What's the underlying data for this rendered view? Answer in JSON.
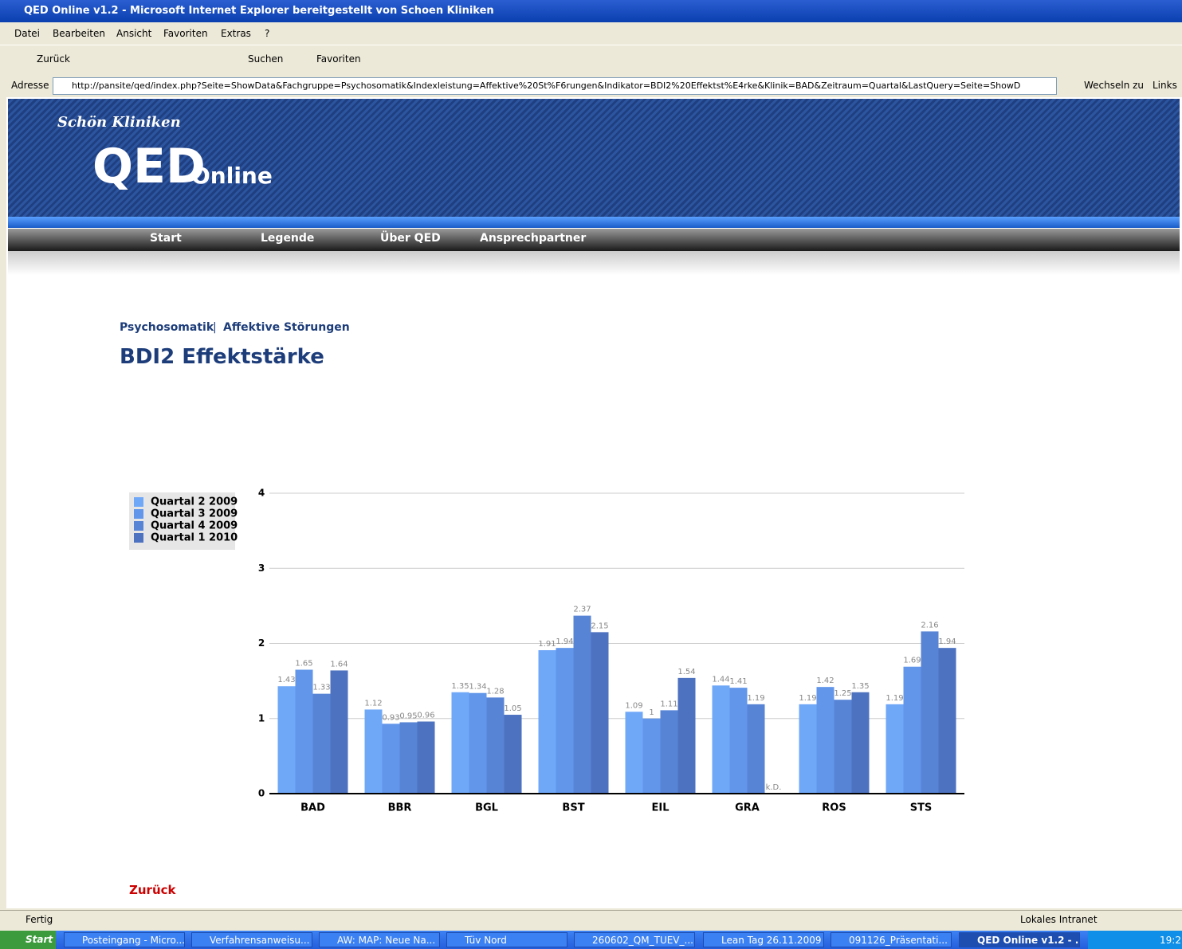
{
  "window": {
    "title": "QED Online v1.2 - Microsoft Internet Explorer bereitgestellt von Schoen Kliniken"
  },
  "menu": [
    "Datei",
    "Bearbeiten",
    "Ansicht",
    "Favoriten",
    "Extras",
    "?"
  ],
  "toolbar": [
    "Zurück",
    "Suchen",
    "Favoriten"
  ],
  "address": {
    "label": "Adresse",
    "url": "http://pansite/qed/index.php?Seite=ShowData&Fachgruppe=Psychosomatik&Indexleistung=Affektive%20St%F6rungen&Indikator=BDI2%20Effektst%E4rke&Klinik=BAD&Zeitraum=Quartal&LastQuery=Seite=ShowD",
    "go": "Wechseln zu",
    "links": "Links"
  },
  "site": {
    "brand": "Schön Kliniken",
    "logo": "QED",
    "logo_sub": "Online",
    "nav": [
      "Start",
      "Legende",
      "Über QED",
      "Ansprechpartner"
    ]
  },
  "breadcrumb": [
    "Psychosomatik",
    "Affektive Störungen"
  ],
  "breadcrumb_separator": "|",
  "page_title": "BDI2 Effektstärke",
  "chart_data": {
    "type": "bar",
    "categories": [
      "BAD",
      "BBR",
      "BGL",
      "BST",
      "EIL",
      "GRA",
      "ROS",
      "STS"
    ],
    "series": [
      {
        "name": "Quartal 2 2009",
        "color": "#70a8f8",
        "values": [
          1.43,
          1.12,
          1.35,
          1.91,
          1.09,
          1.44,
          1.19,
          1.19
        ]
      },
      {
        "name": "Quartal 3 2009",
        "color": "#6196ea",
        "values": [
          1.65,
          0.93,
          1.34,
          1.94,
          1,
          1.41,
          1.42,
          1.69
        ]
      },
      {
        "name": "Quartal 4 2009",
        "color": "#5884d6",
        "values": [
          1.33,
          0.95,
          1.28,
          2.37,
          1.11,
          1.19,
          1.25,
          2.16
        ]
      },
      {
        "name": "Quartal 1 2010",
        "color": "#4d72c0",
        "values": [
          1.64,
          0.96,
          1.05,
          2.15,
          1.54,
          null,
          1.35,
          1.94
        ],
        "value_labels": [
          "1.64",
          "0.96",
          "1.05",
          "2.15",
          "1.54",
          "k.D.",
          "1.35",
          "1.94"
        ]
      }
    ],
    "ylim": [
      0,
      4
    ],
    "yticks": [
      0,
      1,
      2,
      3,
      4
    ],
    "grid": true,
    "legend": "left"
  },
  "back_link": "Zurück",
  "status": {
    "text": "Fertig",
    "zone": "Lokales Intranet"
  },
  "taskbar": {
    "start": "Start",
    "items": [
      "Posteingang - Micro...",
      "Verfahrensanweisu...",
      "AW: MAP: Neue Na...",
      "Tüv Nord",
      "260602_QM_TUEV_...",
      "Lean Tag 26.11.2009",
      "091126_Präsentati...",
      "QED Online v1.2 - ..."
    ],
    "clock": "19:2"
  }
}
